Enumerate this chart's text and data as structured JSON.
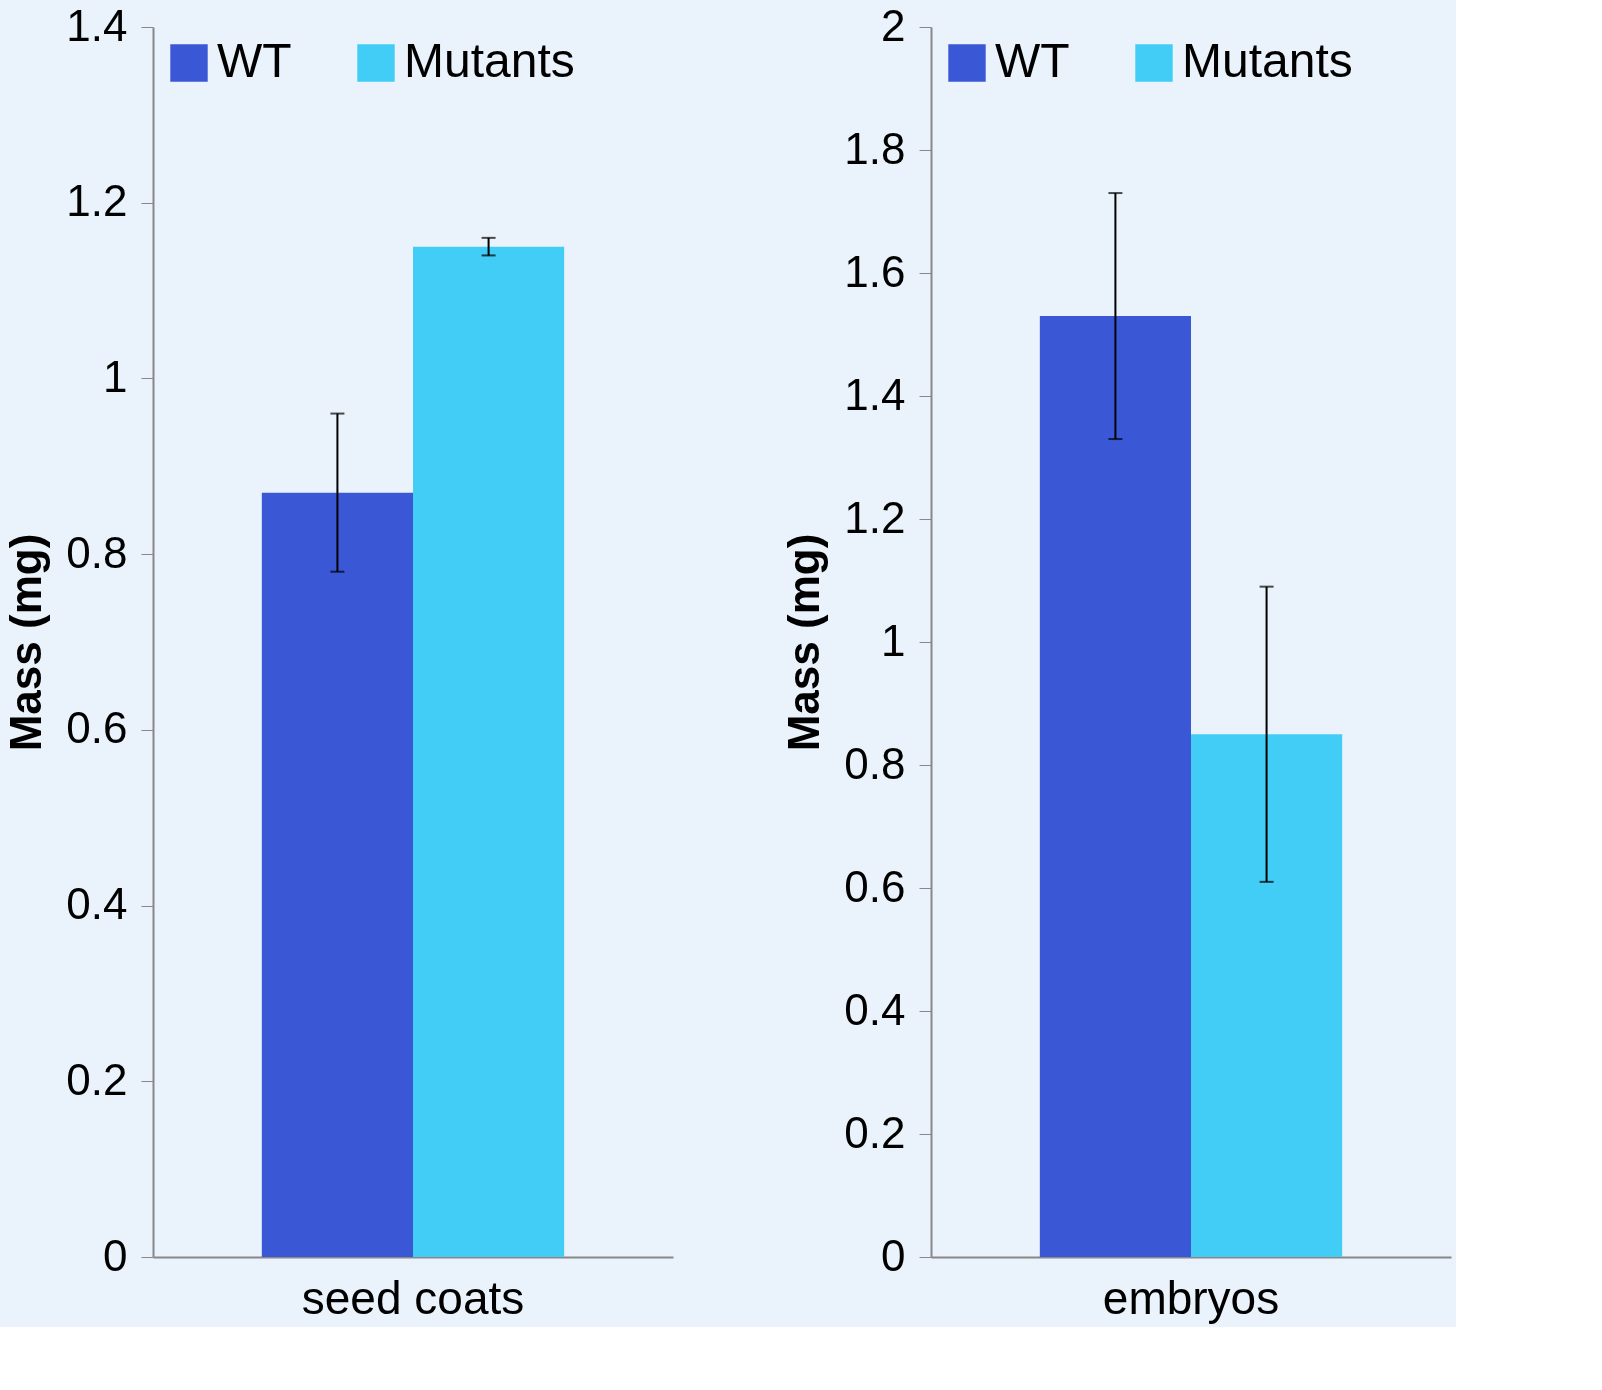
{
  "chart_data": [
    {
      "type": "bar",
      "categories": [
        "seed coats"
      ],
      "ylabel": "Mass (mg)",
      "ylim": [
        0,
        1.4
      ],
      "yticks": [
        0,
        0.2,
        0.4,
        0.6,
        0.8,
        1,
        1.2,
        1.4
      ],
      "legend": "top left",
      "grid": false,
      "series": [
        {
          "name": "WT",
          "color": "#3a58d6",
          "values": [
            0.87
          ],
          "errors": [
            0.09
          ]
        },
        {
          "name": "Mutants",
          "color": "#41cdf5",
          "values": [
            1.15
          ],
          "errors": [
            0.01
          ]
        }
      ]
    },
    {
      "type": "bar",
      "categories": [
        "embryos"
      ],
      "ylabel": "Mass (mg)",
      "ylim": [
        0,
        2
      ],
      "yticks": [
        0,
        0.2,
        0.4,
        0.6,
        0.8,
        1,
        1.2,
        1.4,
        1.6,
        1.8,
        2
      ],
      "legend": "top left",
      "grid": false,
      "series": [
        {
          "name": "WT",
          "color": "#3a58d6",
          "values": [
            1.53
          ],
          "errors": [
            0.2
          ]
        },
        {
          "name": "Mutants",
          "color": "#41cdf5",
          "values": [
            0.85
          ],
          "errors": [
            0.24
          ]
        }
      ]
    }
  ]
}
